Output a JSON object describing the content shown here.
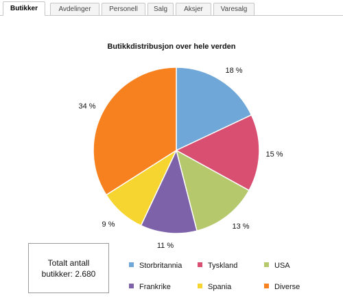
{
  "tabs": [
    {
      "label": "Butikker",
      "active": true
    },
    {
      "label": "Avdelinger",
      "active": false
    },
    {
      "label": "Personell",
      "active": false
    },
    {
      "label": "Salg",
      "active": false
    },
    {
      "label": "Aksjer",
      "active": false
    },
    {
      "label": "Varesalg",
      "active": false
    }
  ],
  "total": {
    "line1": "Totalt antall",
    "line2": "butikker: 2.680"
  },
  "chart_data": {
    "type": "pie",
    "title": "Butikkdistribusjon over hele verden",
    "categories": [
      "Storbritannia",
      "Tyskland",
      "USA",
      "Frankrike",
      "Spania",
      "Diverse"
    ],
    "values": [
      18,
      15,
      13,
      11,
      9,
      34
    ],
    "data_labels": [
      "18 %",
      "15 %",
      "13 %",
      "11 %",
      "9 %",
      "34 %"
    ],
    "colors": [
      "#6fa8d8",
      "#d94f72",
      "#b5c86b",
      "#7e62a9",
      "#f7d531",
      "#f7811e"
    ],
    "legend_position": "bottom"
  }
}
